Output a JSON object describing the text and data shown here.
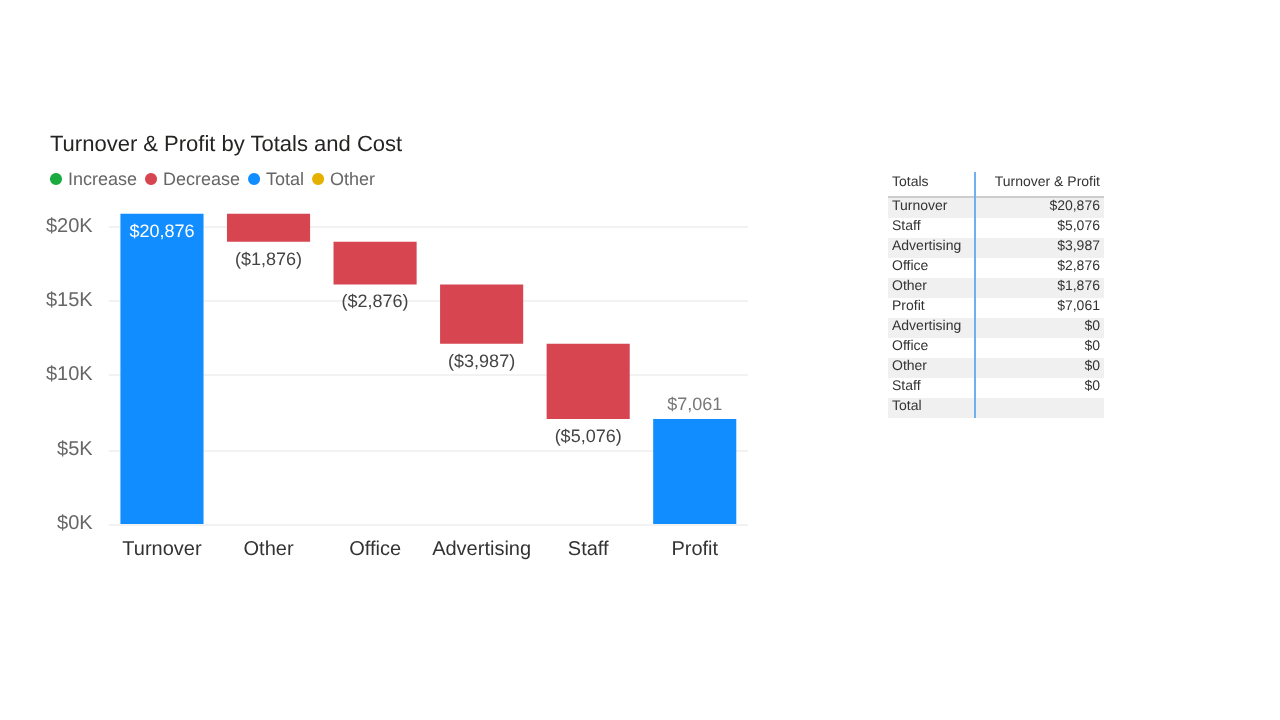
{
  "chart_data": [
    {
      "type": "bar",
      "title": "Turnover & Profit by Totals and Cost",
      "categories": [
        "Turnover",
        "Other",
        "Office",
        "Advertising",
        "Staff",
        "Profit"
      ],
      "series": [
        {
          "name": "Increase",
          "color": "#1aab40",
          "values": [
            null,
            null,
            null,
            null,
            null,
            null
          ],
          "base": [
            null,
            null,
            null,
            null,
            null,
            null
          ]
        },
        {
          "name": "Decrease",
          "color": "#d64550",
          "values": [
            null,
            -1876,
            -2876,
            -3987,
            -5076,
            null
          ],
          "base": [
            null,
            20876,
            19000,
            16124,
            12137,
            null
          ],
          "value_labels": [
            null,
            "($1,876)",
            "($2,876)",
            "($3,987)",
            "($5,076)",
            null
          ]
        },
        {
          "name": "Total",
          "color": "#118dff",
          "values": [
            20876,
            null,
            null,
            null,
            null,
            7061
          ],
          "base": [
            0,
            null,
            null,
            null,
            null,
            0
          ],
          "value_labels": [
            "$20,876",
            null,
            null,
            null,
            null,
            "$7,061"
          ]
        },
        {
          "name": "Other",
          "color": "#e6b000",
          "values": [
            null,
            null,
            null,
            null,
            null,
            null
          ],
          "base": [
            null,
            null,
            null,
            null,
            null,
            null
          ]
        }
      ],
      "ylim": [
        0,
        21000
      ],
      "yticks": [
        {
          "value": 0,
          "label": "$0K"
        },
        {
          "value": 5000,
          "label": "$5K"
        },
        {
          "value": 10000,
          "label": "$10K"
        },
        {
          "value": 15000,
          "label": "$15K"
        },
        {
          "value": 20000,
          "label": "$20K"
        }
      ],
      "grid": "y",
      "legend": "top left"
    },
    {
      "type": "other",
      "categories": [
        "Totals",
        "Turnover & Profit"
      ],
      "y_categories": [
        "Turnover",
        "Staff",
        "Advertising",
        "Office",
        "Other",
        "Profit",
        "Advertising",
        "Office",
        "Other",
        "Staff",
        "Total"
      ],
      "cell_labels": [
        [
          "$20,876"
        ],
        [
          "$5,076"
        ],
        [
          "$3,987"
        ],
        [
          "$2,876"
        ],
        [
          "$1,876"
        ],
        [
          "$7,061"
        ],
        [
          "$0"
        ],
        [
          "$0"
        ],
        [
          "$0"
        ],
        [
          "$0"
        ],
        [
          null
        ]
      ]
    }
  ]
}
